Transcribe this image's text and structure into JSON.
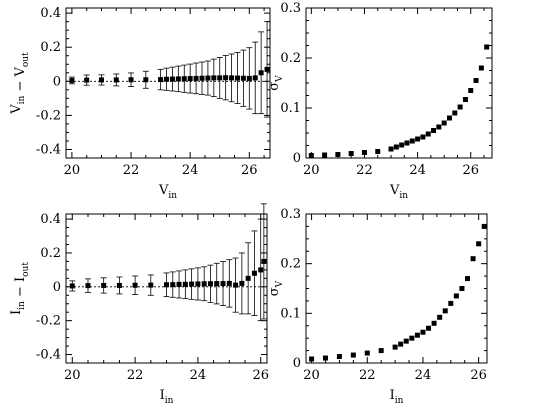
{
  "chart_data": [
    {
      "type": "scatter",
      "panel": "top-left",
      "xlabel": {
        "main": "V",
        "sub": "in"
      },
      "ylabel": [
        {
          "main": "V",
          "sub": "in"
        },
        {
          "main": " − ",
          "sub": ""
        },
        {
          "main": "V",
          "sub": "out"
        }
      ],
      "xlim": [
        19.8,
        26.7
      ],
      "ylim": [
        -0.45,
        0.43
      ],
      "xticks": [
        20,
        22,
        24,
        26
      ],
      "xtick_labels": [
        "20",
        "22",
        "24",
        "26"
      ],
      "yticks": [
        -0.4,
        -0.2,
        0,
        0.2,
        0.4
      ],
      "ytick_labels": [
        "-0.4",
        "-0.2",
        "0",
        "0.2",
        "0.4"
      ],
      "zero_line": true,
      "x": [
        20.0,
        20.5,
        21.0,
        21.5,
        22.0,
        22.5,
        23.0,
        23.2,
        23.4,
        23.6,
        23.8,
        24.0,
        24.2,
        24.4,
        24.6,
        24.8,
        25.0,
        25.2,
        25.4,
        25.6,
        25.8,
        26.0,
        26.2,
        26.4,
        26.6
      ],
      "y": [
        0.005,
        0.007,
        0.008,
        0.008,
        0.009,
        0.009,
        0.01,
        0.012,
        0.013,
        0.014,
        0.015,
        0.016,
        0.017,
        0.018,
        0.019,
        0.02,
        0.02,
        0.021,
        0.02,
        0.019,
        0.018,
        0.017,
        0.02,
        0.05,
        0.07
      ],
      "err": [
        0.02,
        0.03,
        0.03,
        0.035,
        0.04,
        0.05,
        0.06,
        0.065,
        0.07,
        0.075,
        0.08,
        0.085,
        0.09,
        0.095,
        0.1,
        0.11,
        0.12,
        0.13,
        0.14,
        0.15,
        0.165,
        0.18,
        0.21,
        0.24,
        0.28
      ]
    },
    {
      "type": "scatter",
      "panel": "top-right",
      "xlabel": {
        "main": "V",
        "sub": "in"
      },
      "ylabel": [
        {
          "main": "σ",
          "sub": "V"
        }
      ],
      "xlim": [
        19.8,
        26.8
      ],
      "ylim": [
        0,
        0.3
      ],
      "xticks": [
        20,
        22,
        24,
        26
      ],
      "xtick_labels": [
        "20",
        "22",
        "24",
        "26"
      ],
      "yticks": [
        0,
        0.1,
        0.2,
        0.3
      ],
      "ytick_labels": [
        "0",
        "0.1",
        "0.2",
        "0.3"
      ],
      "zero_line": false,
      "x": [
        20.0,
        20.5,
        21.0,
        21.5,
        22.0,
        22.5,
        23.0,
        23.2,
        23.4,
        23.6,
        23.8,
        24.0,
        24.2,
        24.4,
        24.6,
        24.8,
        25.0,
        25.2,
        25.4,
        25.6,
        25.8,
        26.0,
        26.2,
        26.4,
        26.6
      ],
      "y": [
        0.005,
        0.006,
        0.007,
        0.009,
        0.011,
        0.013,
        0.018,
        0.022,
        0.026,
        0.03,
        0.034,
        0.038,
        0.042,
        0.048,
        0.055,
        0.062,
        0.07,
        0.08,
        0.09,
        0.102,
        0.117,
        0.135,
        0.155,
        0.18,
        0.222
      ]
    },
    {
      "type": "scatter",
      "panel": "bottom-left",
      "xlabel": {
        "main": "I",
        "sub": "in"
      },
      "ylabel": [
        {
          "main": "I",
          "sub": "in"
        },
        {
          "main": " − ",
          "sub": ""
        },
        {
          "main": "I",
          "sub": "out"
        }
      ],
      "xlim": [
        19.8,
        26.2
      ],
      "ylim": [
        -0.45,
        0.43
      ],
      "xticks": [
        20,
        22,
        24,
        26
      ],
      "xtick_labels": [
        "20",
        "22",
        "24",
        "26"
      ],
      "yticks": [
        -0.4,
        -0.2,
        0,
        0.2,
        0.4
      ],
      "ytick_labels": [
        "-0.4",
        "-0.2",
        "0",
        "0.2",
        "0.4"
      ],
      "zero_line": true,
      "x": [
        20.0,
        20.5,
        21.0,
        21.5,
        22.0,
        22.5,
        23.0,
        23.2,
        23.4,
        23.6,
        23.8,
        24.0,
        24.2,
        24.4,
        24.6,
        24.8,
        25.0,
        25.2,
        25.4,
        25.6,
        25.8,
        26.0,
        26.1
      ],
      "y": [
        0.005,
        0.007,
        0.008,
        0.008,
        0.009,
        0.01,
        0.012,
        0.013,
        0.014,
        0.015,
        0.016,
        0.017,
        0.018,
        0.018,
        0.019,
        0.019,
        0.02,
        0.01,
        0.02,
        0.05,
        0.08,
        0.1,
        0.15
      ],
      "err": [
        0.03,
        0.04,
        0.045,
        0.05,
        0.055,
        0.06,
        0.07,
        0.075,
        0.08,
        0.085,
        0.09,
        0.095,
        0.1,
        0.11,
        0.12,
        0.13,
        0.14,
        0.16,
        0.18,
        0.21,
        0.25,
        0.3,
        0.34
      ]
    },
    {
      "type": "scatter",
      "panel": "bottom-right",
      "xlabel": {
        "main": "I",
        "sub": "in"
      },
      "ylabel": [
        {
          "main": "σ",
          "sub": "V"
        }
      ],
      "xlim": [
        19.8,
        26.3
      ],
      "ylim": [
        0,
        0.3
      ],
      "xticks": [
        20,
        22,
        24,
        26
      ],
      "xtick_labels": [
        "20",
        "22",
        "24",
        "26"
      ],
      "yticks": [
        0,
        0.1,
        0.2,
        0.3
      ],
      "ytick_labels": [
        "0",
        "0.1",
        "0.2",
        "0.3"
      ],
      "zero_line": false,
      "x": [
        20.0,
        20.5,
        21.0,
        21.5,
        22.0,
        22.5,
        23.0,
        23.2,
        23.4,
        23.6,
        23.8,
        24.0,
        24.2,
        24.4,
        24.6,
        24.8,
        25.0,
        25.2,
        25.4,
        25.6,
        25.8,
        26.0,
        26.2
      ],
      "y": [
        0.008,
        0.01,
        0.013,
        0.016,
        0.02,
        0.025,
        0.032,
        0.038,
        0.044,
        0.05,
        0.056,
        0.062,
        0.07,
        0.08,
        0.092,
        0.105,
        0.12,
        0.135,
        0.15,
        0.17,
        0.21,
        0.24,
        0.275
      ]
    }
  ]
}
